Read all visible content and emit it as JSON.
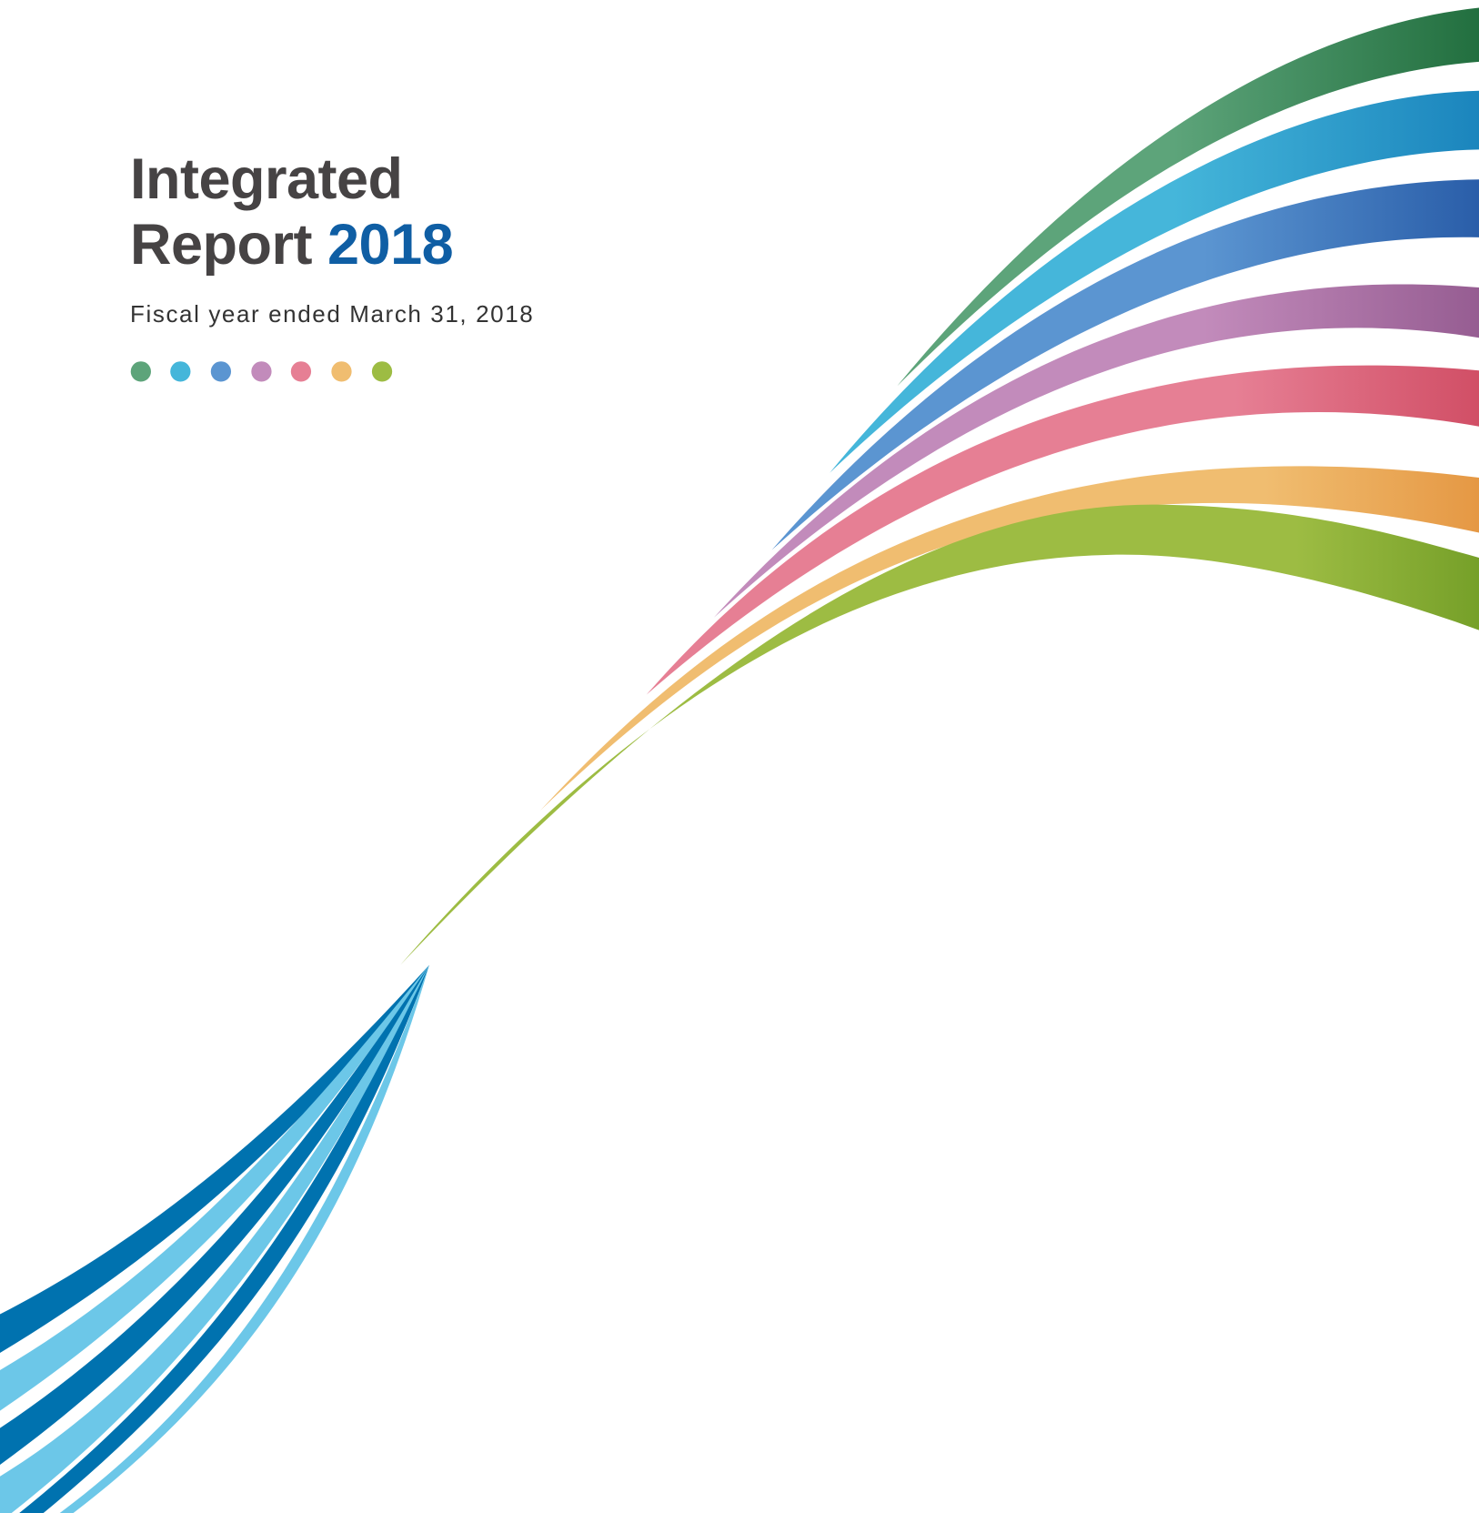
{
  "title": {
    "line1": "Integrated",
    "line2": "Report",
    "year": "2018"
  },
  "subtitle": "Fiscal year ended March 31, 2018"
}
